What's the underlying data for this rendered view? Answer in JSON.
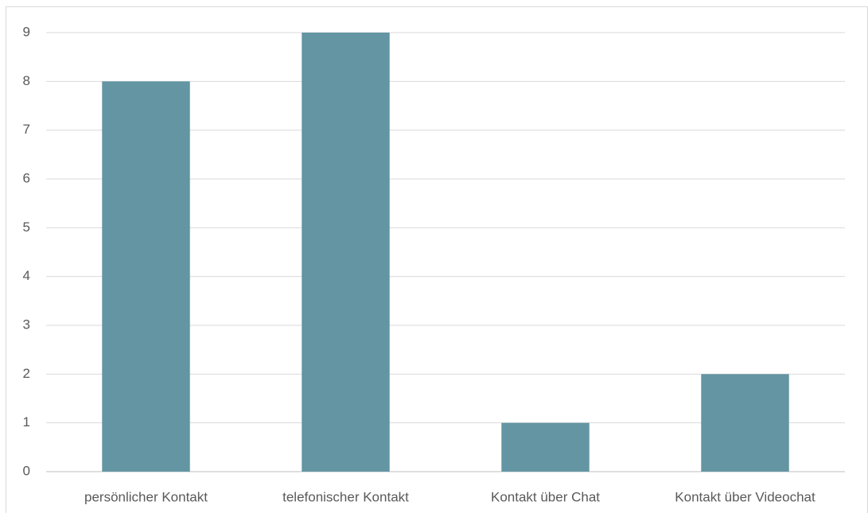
{
  "chart_data": {
    "type": "bar",
    "categories": [
      "persönlicher Kontakt",
      "telefonischer Kontakt",
      "Kontakt über Chat",
      "Kontakt über Videochat"
    ],
    "values": [
      8,
      9,
      1,
      2
    ],
    "color": "#6395a3",
    "ylim": [
      0,
      9
    ],
    "yticks": [
      0,
      1,
      2,
      3,
      4,
      5,
      6,
      7,
      8,
      9
    ],
    "grid": true
  }
}
